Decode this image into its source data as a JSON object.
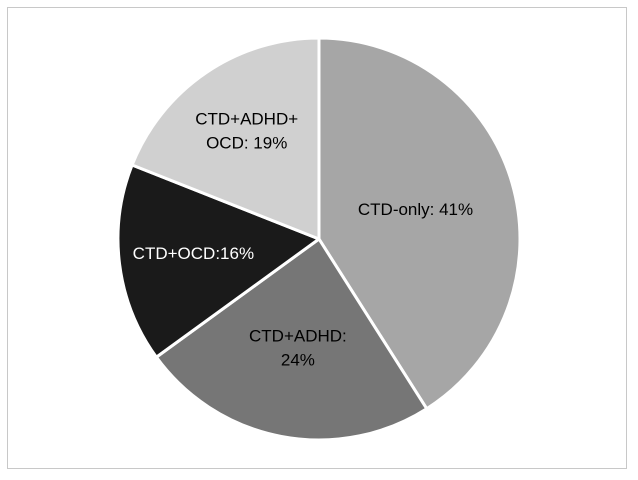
{
  "chart_data": {
    "type": "pie",
    "title": "",
    "slices": [
      {
        "name": "CTD-only",
        "value": 41,
        "color": "#a6a6a6",
        "label_lines": [
          "CTD-only: 41%"
        ],
        "text_color": "#000000"
      },
      {
        "name": "CTD+ADHD",
        "value": 24,
        "color": "#767676",
        "label_lines": [
          "CTD+ADHD:",
          "24%"
        ],
        "text_color": "#000000"
      },
      {
        "name": "CTD+OCD",
        "value": 16,
        "color": "#1a1a1a",
        "label_lines": [
          "CTD+OCD:16%"
        ],
        "text_color": "#ffffff"
      },
      {
        "name": "CTD+ADHD+OCD",
        "value": 19,
        "color": "#d0d0d0",
        "label_lines": [
          "CTD+ADHD+",
          "OCD: 19%"
        ],
        "text_color": "#000000"
      }
    ],
    "start_angle": "12 o'clock",
    "direction": "clockwise",
    "legend": "none"
  }
}
